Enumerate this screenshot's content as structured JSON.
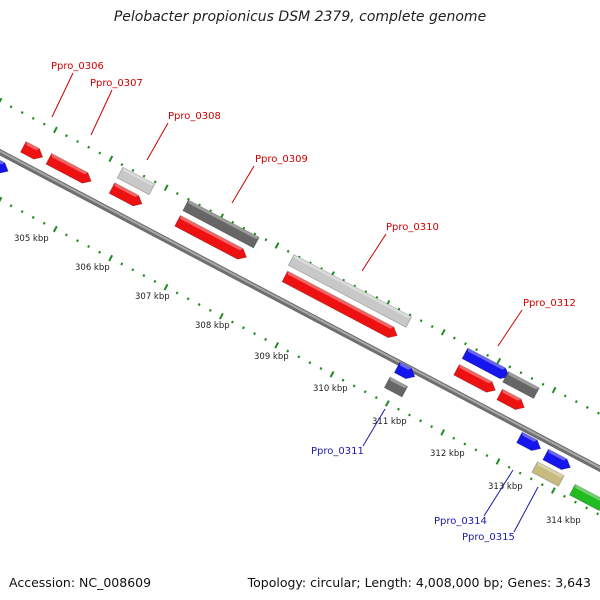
{
  "title": "Pelobacter propionicus DSM 2379, complete genome",
  "accession": "Accession: NC_008609",
  "topology": "Topology: circular; Length: 4,008,000 bp; Genes: 3,643",
  "colors": {
    "backbone": "#8c8c8c",
    "tick": "#1e8c1e",
    "label_red": "#cc0000",
    "label_blue": "#1a1aa8",
    "red": "#ee1111",
    "blue": "#1515ee",
    "lightgray": "#c8c8c8",
    "darkgray": "#666666",
    "khaki": "#c8bb80",
    "green": "#22bb22"
  },
  "kbp_labels": [
    "305 kbp",
    "306 kbp",
    "307 kbp",
    "308 kbp",
    "309 kbp",
    "310 kbp",
    "311 kbp",
    "312 kbp",
    "313 kbp",
    "314 kbp"
  ],
  "gene_labels": [
    {
      "text": "Ppro_0306",
      "color": "label_red"
    },
    {
      "text": "Ppro_0307",
      "color": "label_red"
    },
    {
      "text": "Ppro_0308",
      "color": "label_red"
    },
    {
      "text": "Ppro_0309",
      "color": "label_red"
    },
    {
      "text": "Ppro_0310",
      "color": "label_red"
    },
    {
      "text": "Ppro_0312",
      "color": "label_red"
    },
    {
      "text": "Ppro_0311",
      "color": "label_blue"
    },
    {
      "text": "Ppro_0314",
      "color": "label_blue"
    },
    {
      "text": "Ppro_0315",
      "color": "label_blue"
    }
  ]
}
